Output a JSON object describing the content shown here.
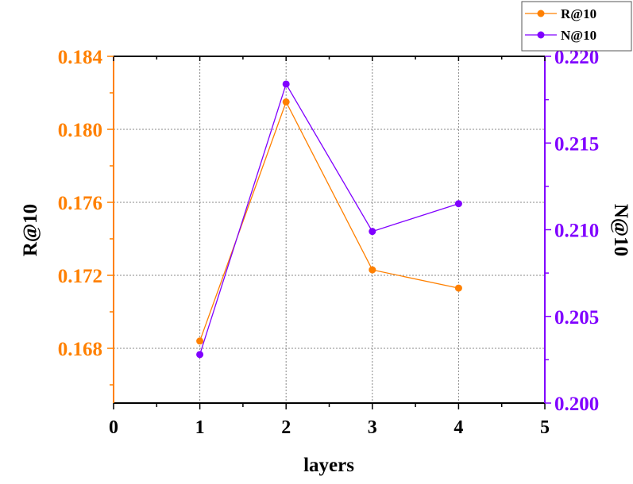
{
  "chart_data": {
    "type": "line",
    "xlabel": "layers",
    "ylabel_left": "R@10",
    "ylabel_right": "N@10",
    "x": [
      1,
      2,
      3,
      4
    ],
    "xlim": [
      0,
      5
    ],
    "xticks": [
      "0",
      "1",
      "2",
      "3",
      "4",
      "5"
    ],
    "ylim_left": [
      0.165,
      0.184
    ],
    "yticks_left": [
      "0.168",
      "0.172",
      "0.176",
      "0.180",
      "0.184"
    ],
    "ylim_right": [
      0.2,
      0.22
    ],
    "yticks_right": [
      "0.200",
      "0.205",
      "0.210",
      "0.215",
      "0.220"
    ],
    "grid": true,
    "legend_position": "top-right",
    "series": [
      {
        "name": "R@10",
        "axis": "left",
        "color": "#FF8000",
        "values": [
          0.1684,
          0.1815,
          0.1723,
          0.1713
        ]
      },
      {
        "name": "N@10",
        "axis": "right",
        "color": "#8000FF",
        "values": [
          0.2028,
          0.2184,
          0.2099,
          0.2115
        ]
      }
    ]
  }
}
